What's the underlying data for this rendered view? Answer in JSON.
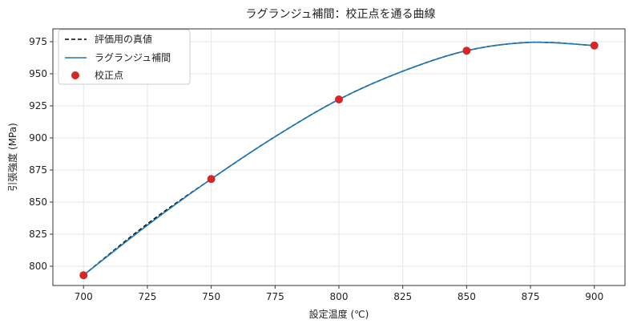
{
  "chart_data": {
    "type": "line",
    "title": "ラグランジュ補間：校正点を通る曲線",
    "xlabel": "設定温度 (℃)",
    "ylabel": "引張強度 (MPa)",
    "xlim": [
      688,
      912
    ],
    "ylim": [
      785,
      985
    ],
    "xticks": [
      700,
      725,
      750,
      775,
      800,
      825,
      850,
      875,
      900
    ],
    "yticks": [
      800,
      825,
      850,
      875,
      900,
      925,
      950,
      975
    ],
    "grid": true,
    "legend_position": "top-left",
    "series": [
      {
        "name": "評価用の真値",
        "style": "dashed",
        "color": "#000000",
        "x": [
          700,
          725,
          750,
          775,
          800,
          825,
          850,
          875,
          900
        ],
        "y": [
          793,
          833,
          868,
          901,
          930,
          952,
          968,
          974.5,
          972
        ]
      },
      {
        "name": "ラグランジュ補間",
        "style": "solid",
        "color": "#1f77b4",
        "x": [
          700,
          725,
          750,
          775,
          800,
          825,
          850,
          875,
          900
        ],
        "y": [
          793,
          832,
          868,
          901,
          930,
          952,
          968,
          974.5,
          972
        ]
      }
    ],
    "points": {
      "name": "校正点",
      "color": "#d62728",
      "x": [
        700,
        750,
        800,
        850,
        900
      ],
      "y": [
        793,
        868,
        930,
        968,
        972
      ]
    }
  }
}
